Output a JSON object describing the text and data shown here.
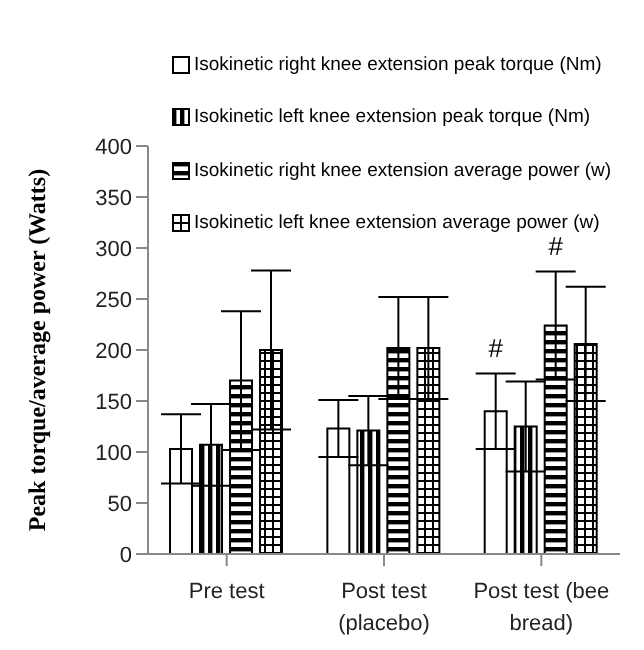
{
  "chart_data": {
    "type": "bar",
    "ylabel": "Peak torque/average power  (Watts)",
    "categories": [
      "Pre test",
      "Post test (placebo)",
      "Post test (bee bread)"
    ],
    "series": [
      {
        "name": "Isokinetic right knee extension peak torque (Nm)",
        "color": "#ffffff",
        "values": [
          103,
          123,
          140
        ],
        "errors": [
          34,
          28,
          37
        ]
      },
      {
        "name": "Isokinetic left knee extension peak torque (Nm)",
        "color": "#000000",
        "values": [
          107,
          121,
          125
        ],
        "errors": [
          40,
          34,
          44
        ]
      },
      {
        "name": "Isokinetic right knee extension average power (w)",
        "color": "#000000",
        "values": [
          170,
          202,
          224
        ],
        "errors": [
          68,
          50,
          53
        ]
      },
      {
        "name": "Isokinetic left knee extension average power (w)",
        "color": "#000000",
        "values": [
          200,
          202,
          206
        ],
        "errors": [
          78,
          50,
          56
        ]
      }
    ],
    "annotations": [
      {
        "text": "#",
        "x": "Post test (bee bread)",
        "y": 177
      },
      {
        "text": "#",
        "x": "Post test (bee bread)",
        "y": 277
      }
    ],
    "ylim": [
      0,
      400
    ],
    "yticks": [
      0,
      50,
      100,
      150,
      200,
      250,
      300,
      350,
      400
    ],
    "grid": false,
    "legend": "top right"
  }
}
